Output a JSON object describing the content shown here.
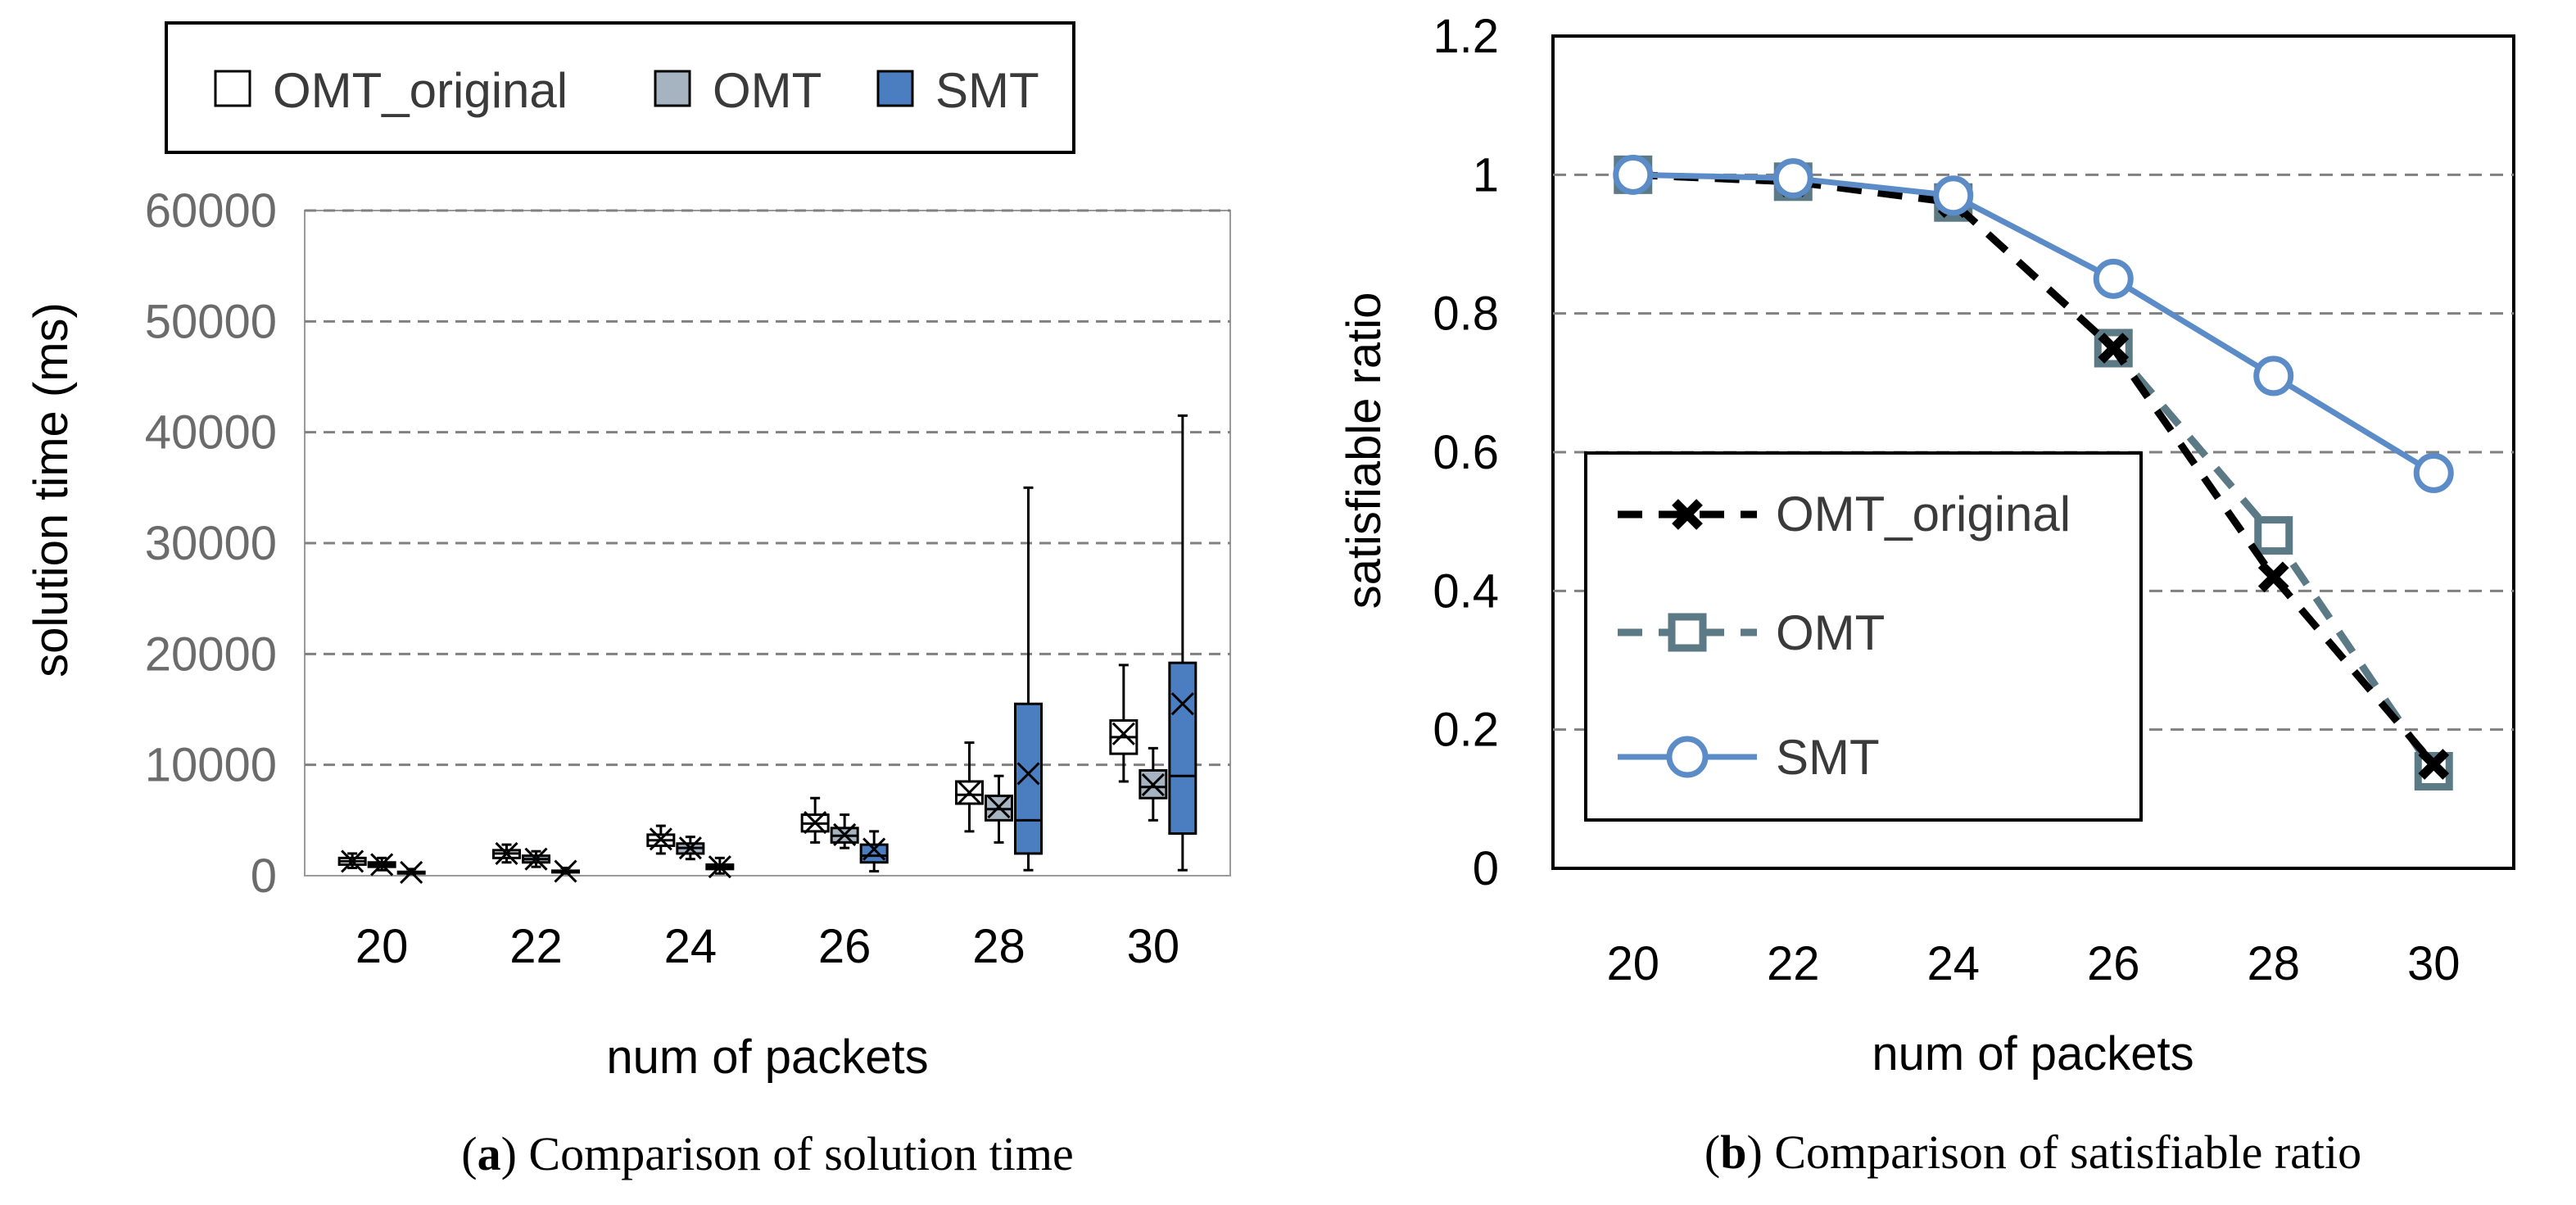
{
  "figure": {
    "caption_a_letter": "a",
    "caption_a_text": "Comparison of solution time",
    "caption_b_letter": "b",
    "caption_b_text": "Comparison of satisfiable ratio"
  },
  "colors": {
    "omt_original_box": "#ffffff",
    "omt_box": "#a5b4c0",
    "smt_box": "#4a7ec1",
    "omt_original_line": "#000000",
    "omt_line": "#5b7a86",
    "smt_line": "#5b8cc8",
    "grid": "#808080"
  },
  "chart_data": [
    {
      "id": "a",
      "type": "box",
      "title": "",
      "xlabel": "num of packets",
      "ylabel": "solution time (ms)",
      "categories": [
        "20",
        "22",
        "24",
        "26",
        "28",
        "30"
      ],
      "ylim": [
        0,
        60000
      ],
      "yticks": [
        0,
        10000,
        20000,
        30000,
        40000,
        50000,
        60000
      ],
      "grid": "horizontal dashed",
      "legend": [
        "OMT_original",
        "OMT",
        "SMT"
      ],
      "legend_position": "top",
      "series": [
        {
          "name": "OMT_original",
          "boxes": [
            {
              "min": 700,
              "q1": 1000,
              "median": 1300,
              "q3": 1600,
              "max": 2000,
              "mean": 1300
            },
            {
              "min": 1200,
              "q1": 1600,
              "median": 2000,
              "q3": 2300,
              "max": 2800,
              "mean": 2000
            },
            {
              "min": 2000,
              "q1": 2700,
              "median": 3200,
              "q3": 3700,
              "max": 4500,
              "mean": 3300
            },
            {
              "min": 3000,
              "q1": 4000,
              "median": 4700,
              "q3": 5500,
              "max": 7000,
              "mean": 4800
            },
            {
              "min": 4000,
              "q1": 6500,
              "median": 7300,
              "q3": 8500,
              "max": 12000,
              "mean": 7500
            },
            {
              "min": 8500,
              "q1": 11000,
              "median": 12500,
              "q3": 14000,
              "max": 19000,
              "mean": 12800
            }
          ]
        },
        {
          "name": "OMT",
          "boxes": [
            {
              "min": 500,
              "q1": 800,
              "median": 1000,
              "q3": 1200,
              "max": 1600,
              "mean": 1000
            },
            {
              "min": 800,
              "q1": 1200,
              "median": 1500,
              "q3": 1800,
              "max": 2200,
              "mean": 1500
            },
            {
              "min": 1500,
              "q1": 2000,
              "median": 2500,
              "q3": 2900,
              "max": 3500,
              "mean": 2500
            },
            {
              "min": 2500,
              "q1": 3000,
              "median": 3600,
              "q3": 4300,
              "max": 5500,
              "mean": 3700
            },
            {
              "min": 3000,
              "q1": 5000,
              "median": 6000,
              "q3": 7200,
              "max": 9000,
              "mean": 6200
            },
            {
              "min": 5000,
              "q1": 7000,
              "median": 8000,
              "q3": 9500,
              "max": 11500,
              "mean": 8200
            }
          ]
        },
        {
          "name": "SMT",
          "boxes": [
            {
              "min": 150,
              "q1": 250,
              "median": 300,
              "q3": 350,
              "max": 600,
              "mean": 300
            },
            {
              "min": 200,
              "q1": 350,
              "median": 400,
              "q3": 450,
              "max": 700,
              "mean": 400
            },
            {
              "min": 200,
              "q1": 600,
              "median": 800,
              "q3": 1000,
              "max": 1600,
              "mean": 800
            },
            {
              "min": 400,
              "q1": 1200,
              "median": 1800,
              "q3": 2800,
              "max": 4000,
              "mean": 2400
            },
            {
              "min": 500,
              "q1": 2000,
              "median": 5000,
              "q3": 15500,
              "max": 35000,
              "mean": 9200
            },
            {
              "min": 500,
              "q1": 3800,
              "median": 9000,
              "q3": 19200,
              "max": 41500,
              "mean": 15500
            }
          ]
        }
      ]
    },
    {
      "id": "b",
      "type": "line",
      "title": "",
      "xlabel": "num of packets",
      "ylabel": "satisfiable ratio",
      "x": [
        "20",
        "22",
        "24",
        "26",
        "28",
        "30"
      ],
      "ylim": [
        0,
        1.2
      ],
      "yticks": [
        "0",
        "0.2",
        "0.4",
        "0.6",
        "0.8",
        "1",
        "1.2"
      ],
      "ytick_values": [
        0,
        0.2,
        0.4,
        0.6,
        0.8,
        1,
        1.2
      ],
      "grid": "horizontal dashed",
      "legend_position": "lower-left",
      "series": [
        {
          "name": "OMT_original",
          "marker": "x",
          "dash": true,
          "values": [
            1.0,
            0.99,
            0.96,
            0.75,
            0.42,
            0.15
          ]
        },
        {
          "name": "OMT",
          "marker": "square",
          "dash": true,
          "values": [
            1.0,
            0.99,
            0.96,
            0.75,
            0.48,
            0.14
          ]
        },
        {
          "name": "SMT",
          "marker": "circle",
          "dash": false,
          "values": [
            1.0,
            0.995,
            0.97,
            0.85,
            0.71,
            0.57
          ]
        }
      ]
    }
  ]
}
